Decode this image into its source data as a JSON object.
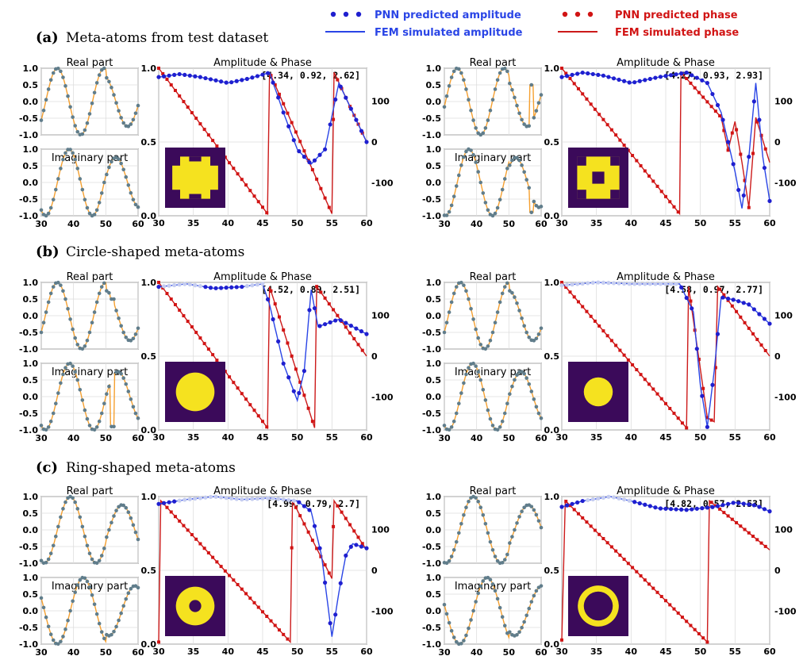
{
  "colors": {
    "amp_pred": "#1f1fcf",
    "amp_fem": "#2a45e6",
    "phase_pred": "#d11414",
    "phase_fem": "#cc1a1a",
    "series_dot": "#607d8b",
    "series_line": "#f5a030",
    "inset_bg": "#3b0a5a",
    "inset_fg": "#f5e21f"
  },
  "legend": {
    "amp_pred": "PNN predicted amplitude",
    "amp_fem": "FEM simulated amplitude",
    "phase_pred": "PNN predicted phase",
    "phase_fem": "FEM simulated phase"
  },
  "sections": [
    {
      "letter": "(a)",
      "label": "Meta-atoms from test dataset"
    },
    {
      "letter": "(b)",
      "label": "Circle-shaped meta-atoms"
    },
    {
      "letter": "(c)",
      "label": "Ring-shaped meta-atoms"
    }
  ],
  "chart_data": [
    {
      "type": "line",
      "id": "a1",
      "real_title": "Real part",
      "imag_title": "Imaginary part",
      "amp_title": "Amplitude & Phase",
      "annotation": "[4.34, 0.92, 2.62]",
      "x_ticks": [
        30,
        40,
        50,
        60
      ],
      "x_ticks_wide": [
        30,
        35,
        40,
        45,
        50,
        55,
        60
      ],
      "y_ticks": [
        "-1.0",
        "-0.5",
        "0.0",
        "0.5",
        "1.0"
      ],
      "amp_ticks": [
        "0.0",
        "0.5",
        "1.0"
      ],
      "phase_ticks": [
        "-100",
        "0",
        "100"
      ],
      "real": {
        "type": "sine",
        "period": 14.5,
        "phase_x": 35,
        "dip_x": null
      },
      "inset": {
        "shape": "cross"
      },
      "amplitude": [
        [
          30,
          0.94
        ],
        [
          33,
          0.96
        ],
        [
          36,
          0.94
        ],
        [
          40,
          0.9
        ],
        [
          43,
          0.93
        ],
        [
          46,
          0.97
        ],
        [
          48,
          0.7
        ],
        [
          50,
          0.45
        ],
        [
          52,
          0.35
        ],
        [
          54,
          0.45
        ],
        [
          56,
          0.9
        ],
        [
          58,
          0.7
        ],
        [
          60,
          0.5
        ]
      ],
      "phase": [
        [
          30,
          180
        ],
        [
          45.7,
          -175
        ],
        [
          46,
          170
        ],
        [
          55,
          -175
        ],
        [
          55.3,
          170
        ],
        [
          60,
          0
        ]
      ]
    },
    {
      "type": "line",
      "id": "a2",
      "real_title": "Real part",
      "imag_title": "Imaginary part",
      "amp_title": "Amplitude & Phase",
      "annotation": "[4.27, 0.93, 2.93]",
      "x_ticks": [
        30,
        40,
        50,
        60
      ],
      "x_ticks_wide": [
        30,
        35,
        40,
        45,
        50,
        55,
        60
      ],
      "y_ticks": [
        "-1.0",
        "-0.5",
        "0.0",
        "0.5",
        "1.0"
      ],
      "amp_ticks": [
        "0.0",
        "0.5",
        "1.0"
      ],
      "phase_ticks": [
        "-100",
        "0",
        "100"
      ],
      "real": {
        "type": "sine",
        "period": 14.5,
        "phase_x": 34,
        "dip_x": 57
      },
      "inset": {
        "shape": "hash"
      },
      "amplitude": [
        [
          30,
          0.94
        ],
        [
          33,
          0.97
        ],
        [
          36,
          0.95
        ],
        [
          40,
          0.9
        ],
        [
          44,
          0.94
        ],
        [
          48,
          0.97
        ],
        [
          51,
          0.9
        ],
        [
          53,
          0.7
        ],
        [
          55,
          0.3
        ],
        [
          56,
          0.05
        ],
        [
          57,
          0.4
        ],
        [
          58,
          0.9
        ],
        [
          59,
          0.4
        ],
        [
          60,
          0.1
        ]
      ],
      "phase": [
        [
          30,
          180
        ],
        [
          47,
          -175
        ],
        [
          47.2,
          170
        ],
        [
          53,
          60
        ],
        [
          54,
          -20
        ],
        [
          55,
          50
        ],
        [
          56,
          -50
        ],
        [
          57,
          -160
        ],
        [
          58,
          60
        ],
        [
          60,
          -50
        ]
      ]
    },
    {
      "type": "line",
      "id": "b1",
      "real_title": "Real part",
      "imag_title": "Imaginary part",
      "amp_title": "Amplitude & Phase",
      "annotation": "[4.52, 0.89, 2.51]",
      "x_ticks": [
        30,
        40,
        50,
        60
      ],
      "x_ticks_wide": [
        30,
        35,
        40,
        45,
        50,
        55,
        60
      ],
      "y_ticks": [
        "-1.0",
        "-0.5",
        "0.0",
        "0.5",
        "1.0"
      ],
      "amp_ticks": [
        "0.0",
        "0.5",
        "1.0"
      ],
      "phase_ticks": [
        "-100",
        "0",
        "100"
      ],
      "real": {
        "type": "sine",
        "period": 15,
        "phase_x": 35,
        "dip_x": 52
      },
      "inset": {
        "shape": "circle",
        "r": 0.32
      },
      "amplitude": [
        [
          30,
          0.97
        ],
        [
          34,
          0.99
        ],
        [
          38,
          0.96
        ],
        [
          42,
          0.97
        ],
        [
          45,
          0.99
        ],
        [
          46,
          0.85
        ],
        [
          48,
          0.45
        ],
        [
          50,
          0.2
        ],
        [
          51,
          0.4
        ],
        [
          52,
          0.95
        ],
        [
          53,
          0.7
        ],
        [
          56,
          0.75
        ],
        [
          60,
          0.65
        ]
      ],
      "phase": [
        [
          30,
          180
        ],
        [
          45.7,
          -175
        ],
        [
          46,
          170
        ],
        [
          52.5,
          -175
        ],
        [
          52.8,
          170
        ],
        [
          60,
          0
        ]
      ]
    },
    {
      "type": "line",
      "id": "b2",
      "real_title": "Real part",
      "imag_title": "Imaginary part",
      "amp_title": "Amplitude & Phase",
      "annotation": "[4.58, 0.97, 2.77]",
      "x_ticks": [
        30,
        40,
        50,
        60
      ],
      "x_ticks_wide": [
        30,
        35,
        40,
        45,
        50,
        55,
        60
      ],
      "y_ticks": [
        "-1.0",
        "-0.5",
        "0.0",
        "0.5",
        "1.0"
      ],
      "amp_ticks": [
        "0.0",
        "0.5",
        "1.0"
      ],
      "phase_ticks": [
        "-100",
        "0",
        "100"
      ],
      "real": {
        "type": "sine",
        "period": 15,
        "phase_x": 35,
        "dip_x": null
      },
      "inset": {
        "shape": "circle",
        "r": 0.24
      },
      "amplitude": [
        [
          30,
          0.98
        ],
        [
          35,
          1.0
        ],
        [
          40,
          0.99
        ],
        [
          44,
          0.99
        ],
        [
          47,
          0.99
        ],
        [
          49,
          0.8
        ],
        [
          50,
          0.3
        ],
        [
          51,
          0.02
        ],
        [
          52,
          0.4
        ],
        [
          53,
          0.9
        ],
        [
          55,
          0.88
        ],
        [
          57,
          0.85
        ],
        [
          60,
          0.72
        ]
      ],
      "phase": [
        [
          30,
          180
        ],
        [
          48,
          -175
        ],
        [
          48.3,
          170
        ],
        [
          51,
          -150
        ],
        [
          52,
          -160
        ],
        [
          52.5,
          170
        ],
        [
          60,
          0
        ]
      ]
    },
    {
      "type": "line",
      "id": "c1",
      "real_title": "Real part",
      "imag_title": "Imaginary part",
      "amp_title": "Amplitude & Phase",
      "annotation": "[4.99, 0.79, 2.7]",
      "x_ticks": [
        30,
        40,
        50,
        60
      ],
      "x_ticks_wide": [
        30,
        35,
        40,
        45,
        50,
        55,
        60
      ],
      "y_ticks": [
        "-1.0",
        "-0.5",
        "0.0",
        "0.5",
        "1.0"
      ],
      "amp_ticks": [
        "0.0",
        "0.5",
        "1.0"
      ],
      "phase_ticks": [
        "-100",
        "0",
        "100"
      ],
      "real": {
        "type": "sine",
        "period": 16,
        "phase_x": 39,
        "dip_x": null
      },
      "inset": {
        "shape": "ring",
        "r_out": 0.32,
        "r_in": 0.1
      },
      "amplitude": [
        [
          30,
          0.95
        ],
        [
          34,
          0.98
        ],
        [
          38,
          1.0
        ],
        [
          42,
          0.98
        ],
        [
          46,
          0.99
        ],
        [
          50,
          0.97
        ],
        [
          52,
          0.9
        ],
        [
          53.5,
          0.6
        ],
        [
          55,
          0.05
        ],
        [
          56,
          0.35
        ],
        [
          57,
          0.6
        ],
        [
          58,
          0.68
        ],
        [
          60,
          0.65
        ]
      ],
      "phase": [
        [
          30,
          -175
        ],
        [
          30.3,
          170
        ],
        [
          49,
          -175
        ],
        [
          49.3,
          170
        ],
        [
          55,
          -20
        ],
        [
          55.3,
          170
        ],
        [
          60,
          50
        ]
      ]
    },
    {
      "type": "line",
      "id": "c2",
      "real_title": "Real part",
      "imag_title": "Imaginary part",
      "amp_title": "Amplitude & Phase",
      "annotation": "[4.82, 0.57, 2.53]",
      "x_ticks": [
        30,
        40,
        50,
        60
      ],
      "x_ticks_wide": [
        30,
        35,
        40,
        45,
        50,
        55,
        60
      ],
      "y_ticks": [
        "-1.0",
        "-0.5",
        "0.0",
        "0.5",
        "1.0"
      ],
      "amp_ticks": [
        "0.0",
        "0.5",
        "1.0"
      ],
      "phase_ticks": [
        "-100",
        "0",
        "100"
      ],
      "real": {
        "type": "sine",
        "period": 17,
        "phase_x": 39,
        "dip_x": null
      },
      "inset": {
        "shape": "ring",
        "r_out": 0.34,
        "r_in": 0.24
      },
      "amplitude": [
        [
          30,
          0.93
        ],
        [
          33,
          0.97
        ],
        [
          37,
          1.0
        ],
        [
          40,
          0.97
        ],
        [
          44,
          0.92
        ],
        [
          48,
          0.91
        ],
        [
          52,
          0.93
        ],
        [
          55,
          0.96
        ],
        [
          58,
          0.94
        ],
        [
          60,
          0.9
        ]
      ],
      "phase": [
        [
          30,
          -170
        ],
        [
          30.5,
          170
        ],
        [
          51,
          -175
        ],
        [
          51.3,
          170
        ],
        [
          60,
          50
        ]
      ]
    }
  ]
}
